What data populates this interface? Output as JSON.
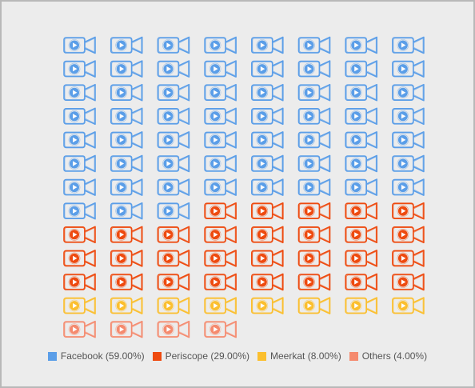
{
  "chart_data": {
    "type": "pictograph",
    "icon": "video-camera-icon",
    "unit_percent": 1,
    "columns": 8,
    "series": [
      {
        "name": "Facebook",
        "value": 59,
        "color": "#5b9ee8",
        "label": "Facebook (59.00%)"
      },
      {
        "name": "Periscope",
        "value": 29,
        "color": "#ee4a0f",
        "label": "Periscope (29.00%)"
      },
      {
        "name": "Meerkat",
        "value": 8,
        "color": "#fbbf2e",
        "label": "Meerkat (8.00%)"
      },
      {
        "name": "Others",
        "value": 4,
        "color": "#f58a6e",
        "label": "Others (4.00%)"
      }
    ],
    "legend_position": "bottom"
  }
}
